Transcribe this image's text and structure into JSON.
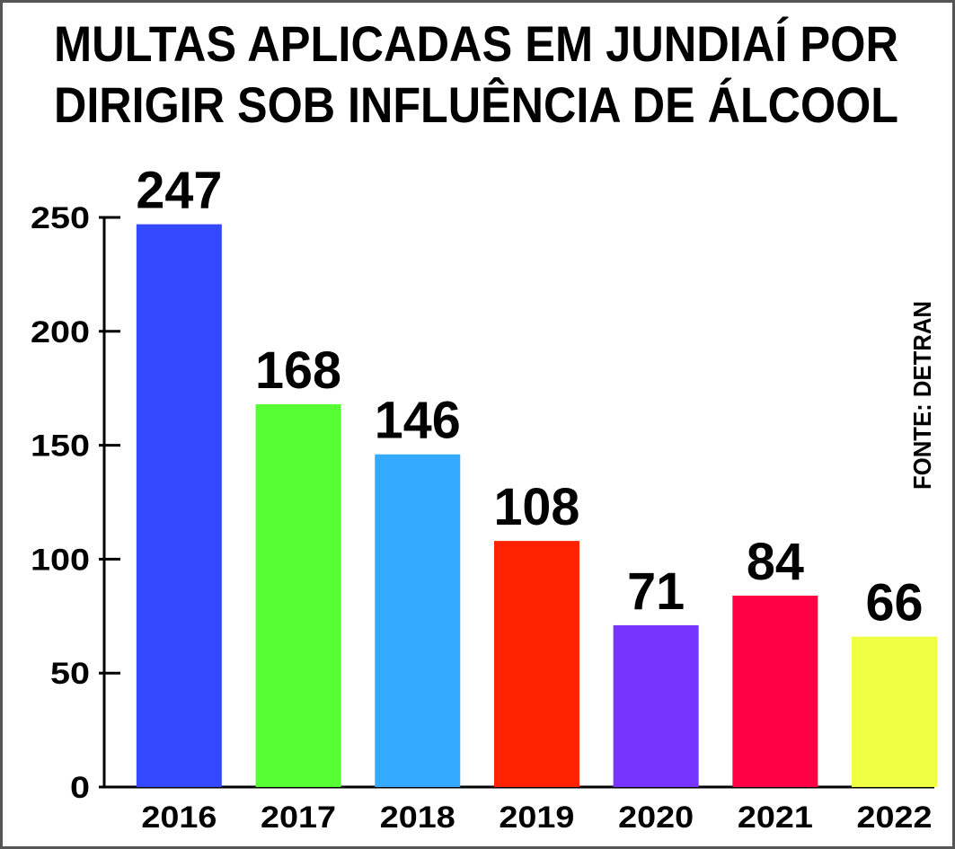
{
  "chart_data": {
    "type": "bar",
    "title": [
      "MULTAS APLICADAS EM JUNDIAÍ POR",
      "DIRIGIR SOB INFLUÊNCIA DE ÁLCOOL"
    ],
    "source": "FONTE: DETRAN",
    "categories": [
      "2016",
      "2017",
      "2018",
      "2019",
      "2020",
      "2021",
      "2022"
    ],
    "values": [
      247,
      168,
      146,
      108,
      71,
      84,
      66
    ],
    "colors": [
      "#3448ff",
      "#55ff33",
      "#33aaff",
      "#ff2200",
      "#7733ff",
      "#ff0044",
      "#eeff44"
    ],
    "ylim": [
      0,
      250
    ],
    "yticks": [
      0,
      50,
      100,
      150,
      200,
      250
    ],
    "grid": false
  }
}
